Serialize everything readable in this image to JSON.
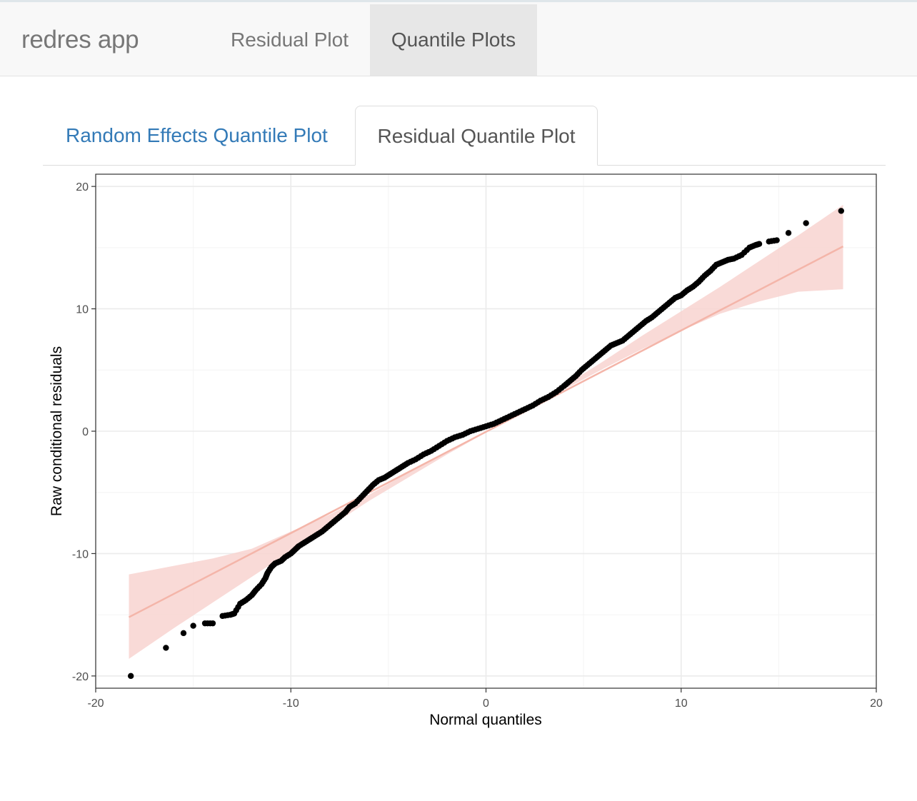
{
  "navbar": {
    "brand": "redres app",
    "tabs": [
      {
        "label": "Residual Plot",
        "active": false
      },
      {
        "label": "Quantile Plots",
        "active": true
      }
    ]
  },
  "subtabs": [
    {
      "label": "Random Effects Quantile Plot",
      "active": false
    },
    {
      "label": "Residual Quantile Plot",
      "active": true
    }
  ],
  "colors": {
    "link": "#337ab7",
    "points": "#000000",
    "line": "#f4b5a9",
    "band": "#f8d3d0",
    "grid": "#ebebeb"
  },
  "chart_data": {
    "type": "scatter",
    "xlabel": "Normal quantiles",
    "ylabel": "Raw conditional residuals",
    "xlim": [
      -20,
      20
    ],
    "ylim": [
      -21,
      21
    ],
    "xticks": [
      "-20",
      "-10",
      "0",
      "10",
      "20"
    ],
    "yticks": [
      "-20",
      "-10",
      "0",
      "10",
      "20"
    ],
    "grid": true,
    "reference_line": {
      "x": [
        -18.3,
        18.3
      ],
      "y": [
        -15.2,
        15.1
      ]
    },
    "confidence_band": {
      "x": [
        -18.3,
        -16,
        -14,
        -12,
        -10,
        -8,
        -6,
        -4,
        -2,
        0,
        2,
        4,
        6,
        8,
        10,
        12,
        14,
        16,
        18.3
      ],
      "upper": [
        -11.7,
        -11.0,
        -10.4,
        -9.6,
        -8.2,
        -6.8,
        -5.2,
        -3.4,
        -1.7,
        0.0,
        1.8,
        3.7,
        5.7,
        7.8,
        9.8,
        11.8,
        13.9,
        16.0,
        18.5
      ],
      "lower": [
        -18.6,
        -16.1,
        -14.0,
        -11.9,
        -9.8,
        -7.8,
        -5.7,
        -3.8,
        -1.9,
        -0.1,
        1.7,
        3.4,
        5.1,
        6.7,
        8.2,
        9.6,
        10.6,
        11.4,
        11.6
      ]
    },
    "points": {
      "x": [
        -18.2,
        -16.4,
        -15.5,
        -15.0,
        -14.4,
        -14.0,
        -13.5,
        -13.1,
        -12.9,
        -12.6,
        -12.3,
        -12.0,
        -11.8,
        -11.5,
        -11.3,
        -11.2,
        -11.0,
        -10.8,
        -10.5,
        -10.3,
        -10.0,
        -9.8,
        -9.6,
        -9.3,
        -9.0,
        -8.7,
        -8.4,
        -8.1,
        -7.8,
        -7.5,
        -7.2,
        -7.0,
        -6.7,
        -6.4,
        -6.1,
        -5.8,
        -5.5,
        -5.2,
        -4.9,
        -4.6,
        -4.3,
        -4.0,
        -3.6,
        -3.2,
        -2.8,
        -2.4,
        -2.0,
        -1.6,
        -1.2,
        -0.8,
        -0.4,
        0.0,
        0.4,
        0.8,
        1.2,
        1.6,
        2.0,
        2.4,
        2.8,
        3.2,
        3.6,
        4.0,
        4.3,
        4.6,
        4.9,
        5.2,
        5.5,
        5.8,
        6.1,
        6.4,
        6.7,
        7.0,
        7.3,
        7.6,
        7.9,
        8.2,
        8.5,
        8.8,
        9.1,
        9.4,
        9.7,
        10.0,
        10.3,
        10.6,
        10.9,
        11.2,
        11.5,
        11.8,
        12.1,
        12.4,
        12.7,
        13.1,
        13.5,
        13.8,
        14.0,
        14.5,
        14.9,
        15.5,
        16.4,
        18.2
      ],
      "y": [
        -20.0,
        -17.7,
        -16.5,
        -15.9,
        -15.7,
        -15.7,
        -15.1,
        -15.0,
        -14.9,
        -14.1,
        -13.8,
        -13.4,
        -13.0,
        -12.5,
        -12.0,
        -11.6,
        -11.1,
        -10.8,
        -10.6,
        -10.3,
        -10.0,
        -9.7,
        -9.4,
        -9.1,
        -8.8,
        -8.5,
        -8.2,
        -7.8,
        -7.4,
        -7.0,
        -6.6,
        -6.2,
        -5.9,
        -5.4,
        -4.9,
        -4.4,
        -4.0,
        -3.8,
        -3.5,
        -3.2,
        -2.9,
        -2.6,
        -2.3,
        -1.9,
        -1.6,
        -1.2,
        -0.8,
        -0.5,
        -0.3,
        0.0,
        0.2,
        0.4,
        0.6,
        0.9,
        1.2,
        1.5,
        1.8,
        2.1,
        2.5,
        2.8,
        3.2,
        3.7,
        4.1,
        4.5,
        5.0,
        5.4,
        5.8,
        6.2,
        6.6,
        7.0,
        7.2,
        7.4,
        7.8,
        8.2,
        8.6,
        9.0,
        9.3,
        9.7,
        10.1,
        10.5,
        10.9,
        11.1,
        11.5,
        11.8,
        12.2,
        12.7,
        13.1,
        13.6,
        13.8,
        14.0,
        14.1,
        14.4,
        15.0,
        15.2,
        15.3,
        15.5,
        15.6,
        16.2,
        17.0,
        18.0
      ]
    }
  }
}
